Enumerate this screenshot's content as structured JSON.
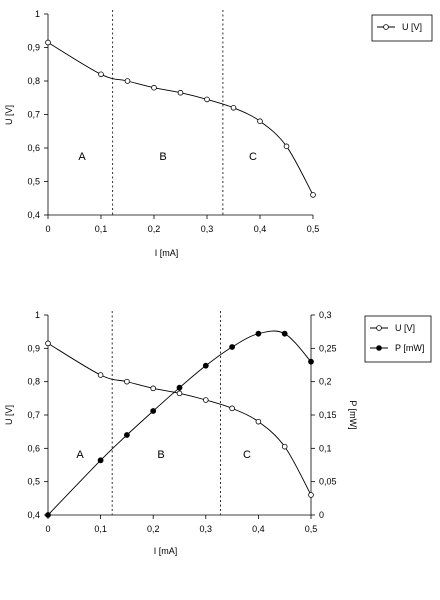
{
  "chart_data": [
    {
      "type": "line",
      "xlabel": "I [mA]",
      "ylabel": "U [V]",
      "xlim": [
        0,
        0.5
      ],
      "ylim": [
        0.4,
        1
      ],
      "x_ticks": [
        "0",
        "0,1",
        "0,2",
        "0,3",
        "0,4",
        "0,5"
      ],
      "y_ticks": [
        "0,4",
        "0,5",
        "0,6",
        "0,7",
        "0,8",
        "0,9",
        "1"
      ],
      "region_boundaries": [
        0.122,
        0.33
      ],
      "regions": [
        "A",
        "B",
        "C"
      ],
      "legend": {
        "position": "top-right"
      },
      "series": [
        {
          "name": "U [V]",
          "marker": "open-circle",
          "x": [
            0,
            0.1,
            0.15,
            0.2,
            0.25,
            0.3,
            0.35,
            0.4,
            0.45,
            0.5
          ],
          "y": [
            0.915,
            0.82,
            0.8,
            0.78,
            0.765,
            0.745,
            0.72,
            0.68,
            0.605,
            0.46
          ]
        }
      ]
    },
    {
      "type": "line",
      "xlabel": "I [mA]",
      "ylabel": "U [V]",
      "y2label": "P [mW]",
      "xlim": [
        0,
        0.5
      ],
      "ylim": [
        0.4,
        1
      ],
      "y2lim": [
        0,
        0.3
      ],
      "x_ticks": [
        "0",
        "0,1",
        "0,2",
        "0,3",
        "0,4",
        "0,5"
      ],
      "y_ticks": [
        "0,4",
        "0,5",
        "0,6",
        "0,7",
        "0,8",
        "0,9",
        "1"
      ],
      "y2_ticks": [
        "0",
        "0,05",
        "0,1",
        "0,15",
        "0,2",
        "0,25",
        "0,3"
      ],
      "region_boundaries": [
        0.122,
        0.328
      ],
      "regions": [
        "A",
        "B",
        "C"
      ],
      "legend": {
        "position": "top-right"
      },
      "series": [
        {
          "name": "U [V]",
          "axis": "left",
          "marker": "open-circle",
          "x": [
            0,
            0.1,
            0.15,
            0.2,
            0.25,
            0.3,
            0.35,
            0.4,
            0.45,
            0.5
          ],
          "y": [
            0.915,
            0.82,
            0.8,
            0.78,
            0.765,
            0.745,
            0.72,
            0.68,
            0.605,
            0.46
          ]
        },
        {
          "name": "P [mW]",
          "axis": "right",
          "marker": "filled-circle",
          "x": [
            0,
            0.1,
            0.15,
            0.2,
            0.25,
            0.3,
            0.35,
            0.4,
            0.45,
            0.5
          ],
          "y": [
            0,
            0.082,
            0.12,
            0.156,
            0.191,
            0.224,
            0.252,
            0.272,
            0.272,
            0.23
          ]
        }
      ]
    }
  ]
}
